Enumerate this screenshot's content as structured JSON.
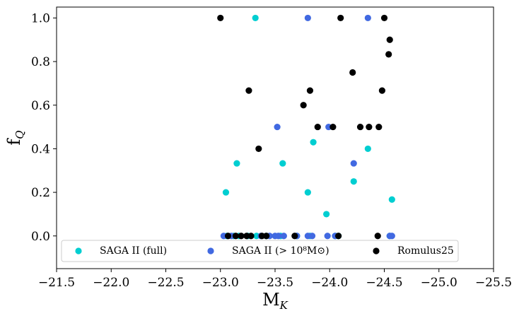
{
  "chart_data": {
    "type": "scatter",
    "title": "",
    "xlabel": "M",
    "xlabel_sub": "K",
    "ylabel": "f",
    "ylabel_sub": "Q",
    "xlim": [
      -21.5,
      -25.5
    ],
    "ylim": [
      -0.15,
      1.05
    ],
    "x_reversed": true,
    "xticks": [
      -21.5,
      -22.0,
      -22.5,
      -23.0,
      -23.5,
      -24.0,
      -24.5,
      -25.0,
      -25.5
    ],
    "xtick_labels": [
      "−21.5",
      "−22.0",
      "−22.5",
      "−23.0",
      "−23.5",
      "−24.0",
      "−24.5",
      "−25.0",
      "−25.5"
    ],
    "yticks": [
      0.0,
      0.2,
      0.4,
      0.6,
      0.8,
      1.0
    ],
    "ytick_labels": [
      "0.0",
      "0.2",
      "0.4",
      "0.6",
      "0.8",
      "1.0"
    ],
    "grid": false,
    "legend_position": "bottom",
    "series": [
      {
        "name": "SAGA II (full)",
        "color": "#00ced1",
        "x": [
          -23.32,
          -23.15,
          -23.05,
          -23.57,
          -23.85,
          -23.8,
          -23.97,
          -24.22,
          -24.35,
          -24.57,
          -23.06,
          -23.12,
          -23.17,
          -23.25,
          -23.33,
          -23.42,
          -23.55,
          -23.7,
          -23.82,
          -24.05,
          -24.08,
          -24.55
        ],
        "y": [
          1.0,
          0.333,
          0.2,
          0.333,
          0.43,
          0.2,
          0.1,
          0.25,
          0.4,
          0.167,
          0,
          0,
          0,
          0,
          0,
          0,
          0,
          0,
          0,
          0,
          0,
          0
        ]
      },
      {
        "name": "SAGA II (> 10⁸M⊙)",
        "color": "#4169e1",
        "x": [
          -23.8,
          -24.35,
          -23.52,
          -23.99,
          -24.22,
          -23.03,
          -23.1,
          -23.37,
          -23.45,
          -23.5,
          -23.53,
          -23.58,
          -23.7,
          -23.8,
          -23.84,
          -23.98,
          -24.05,
          -24.55,
          -24.57
        ],
        "y": [
          1.0,
          1.0,
          0.5,
          0.5,
          0.333,
          0,
          0,
          0,
          0,
          0,
          0,
          0,
          0,
          0,
          0,
          0,
          0,
          0,
          0
        ]
      },
      {
        "name": "Romulus25",
        "color": "#000000",
        "x": [
          -23.0,
          -24.1,
          -24.5,
          -24.55,
          -24.54,
          -24.21,
          -24.48,
          -23.26,
          -23.82,
          -23.76,
          -23.89,
          -24.03,
          -24.28,
          -24.36,
          -24.45,
          -23.35,
          -23.07,
          -23.14,
          -23.19,
          -23.24,
          -23.28,
          -23.38,
          -23.42,
          -23.68,
          -24.08,
          -24.44
        ],
        "y": [
          1.0,
          1.0,
          1.0,
          0.9,
          0.833,
          0.75,
          0.667,
          0.667,
          0.667,
          0.6,
          0.5,
          0.5,
          0.5,
          0.5,
          0.5,
          0.4,
          0,
          0,
          0,
          0,
          0,
          0,
          0,
          0,
          0,
          0
        ]
      }
    ]
  }
}
